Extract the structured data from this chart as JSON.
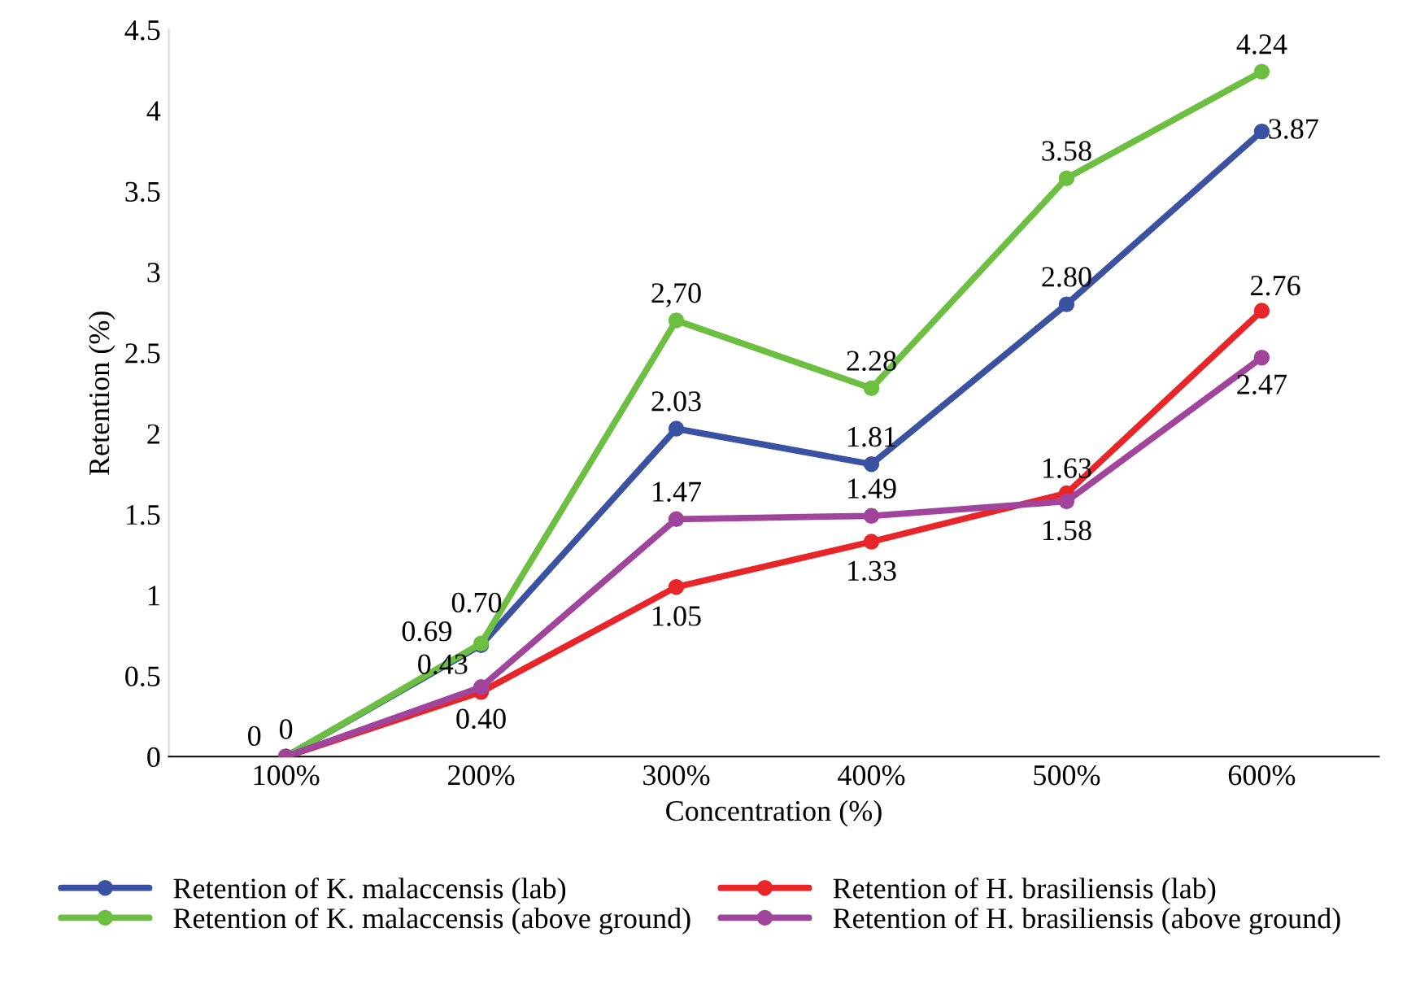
{
  "chart_data": {
    "type": "line",
    "xlabel": "Concentration (%)",
    "ylabel": "Retention (%)",
    "categories": [
      "100%",
      "200%",
      "300%",
      "400%",
      "500%",
      "600%"
    ],
    "ylim": [
      0,
      4.5
    ],
    "yticks": [
      0,
      0.5,
      1,
      1.5,
      2,
      2.5,
      3,
      3.5,
      4,
      4.5
    ],
    "grid": false,
    "legend": "bottom",
    "marker": "circle",
    "line_style": "solid",
    "series": [
      {
        "name": "Retention of K. malaccensis (lab)",
        "color": "#3b52a3",
        "values": [
          0,
          0.69,
          2.03,
          1.81,
          2.8,
          3.87
        ],
        "value_labels": [
          "0",
          "0.69",
          "2.03",
          "1.81",
          "2.80",
          "3.87"
        ]
      },
      {
        "name": "Retention of K. malaccensis (above ground)",
        "color": "#6cbf40",
        "values": [
          0,
          0.7,
          2.7,
          2.28,
          3.58,
          4.24
        ],
        "value_labels": [
          "0",
          "0.70",
          "2,70",
          "2.28",
          "3.58",
          "4.24"
        ]
      },
      {
        "name": "Retention of H. brasiliensis (lab)",
        "color": "#e8262a",
        "values": [
          0,
          0.4,
          1.05,
          1.33,
          1.63,
          2.76
        ],
        "value_labels": [
          null,
          "0.40",
          "1.05",
          "1.33",
          "1.63",
          "2.76"
        ]
      },
      {
        "name": "Retention of H. brasiliensis (above ground)",
        "color": "#a0449c",
        "values": [
          0,
          0.43,
          1.47,
          1.49,
          1.58,
          2.47
        ],
        "value_labels": [
          null,
          "0.43",
          "1.47",
          "1.49",
          "1.58",
          "2.47"
        ]
      }
    ]
  }
}
